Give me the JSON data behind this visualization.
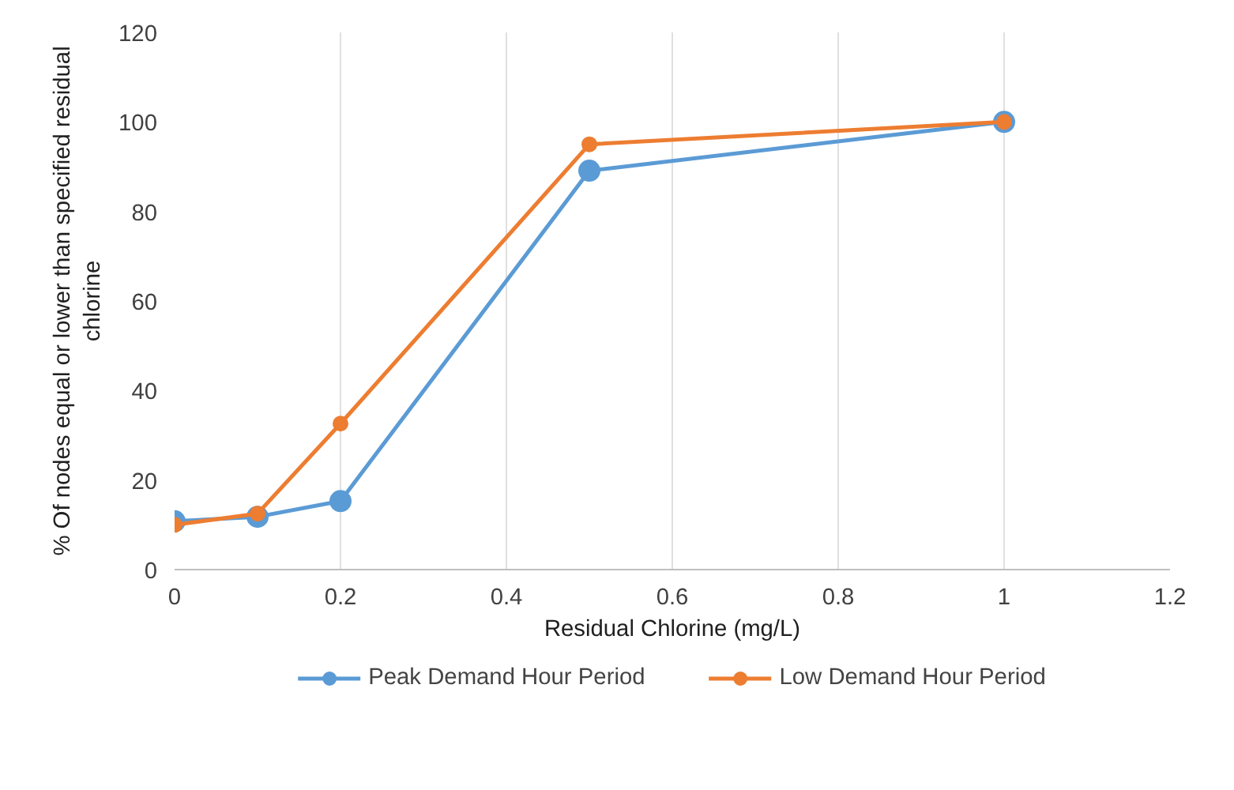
{
  "chart_data": {
    "type": "line",
    "xlabel": "Residual Chlorine (mg/L)",
    "ylabel": "% Of nodes equal or lower than specified residual chlorine",
    "x": [
      0,
      0.1,
      0.2,
      0.5,
      1
    ],
    "series": [
      {
        "name": "Peak Demand Hour Period",
        "color": "#5b9bd5",
        "values": [
          10.8,
          11.8,
          15.3,
          89.1,
          100
        ]
      },
      {
        "name": "Low Demand Hour Period",
        "color": "#ed7d31",
        "values": [
          10,
          12.5,
          32.6,
          95,
          100
        ]
      }
    ],
    "xlim": [
      0,
      1.2
    ],
    "xticks": [
      0,
      0.2,
      0.4,
      0.6,
      0.8,
      1,
      1.2
    ],
    "ylim": [
      0,
      120
    ],
    "yticks": [
      0,
      20,
      40,
      60,
      80,
      100,
      120
    ],
    "grid": "x",
    "legend": "bottom",
    "marker": "circle",
    "line_style": "solid"
  }
}
